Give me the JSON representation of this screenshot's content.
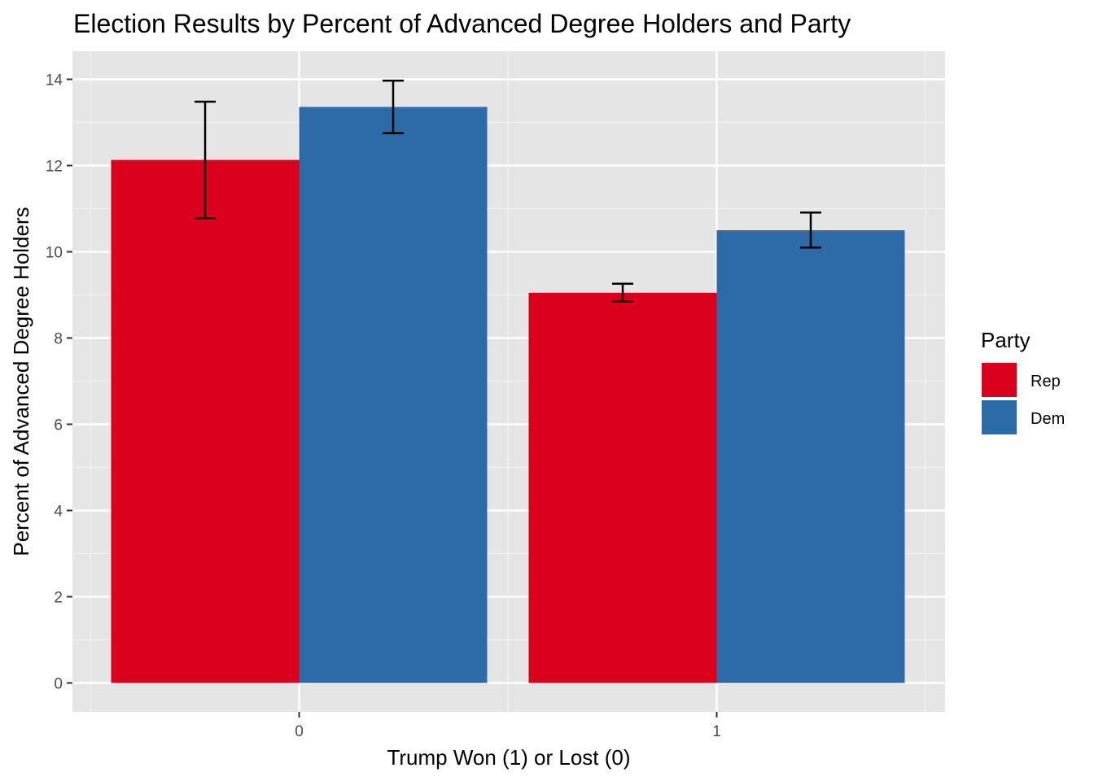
{
  "chart_data": {
    "type": "bar",
    "title": "Election Results by Percent of Advanced Degree Holders and Party",
    "xlabel": "Trump Won (1) or Lost (0)",
    "ylabel": "Percent of Advanced Degree Holders",
    "categories": [
      "0",
      "1"
    ],
    "y_ticks": [
      "0",
      "2",
      "4",
      "6",
      "8",
      "10",
      "12",
      "14"
    ],
    "ylim": [
      -0.55,
      14.6
    ],
    "grid": true,
    "legend": {
      "title": "Party",
      "placement": "right"
    },
    "series": [
      {
        "name": "Rep",
        "color": "#DB001B",
        "values": [
          12.13,
          9.05
        ],
        "error_low": [
          10.78,
          8.85
        ],
        "error_high": [
          13.48,
          9.26
        ]
      },
      {
        "name": "Dem",
        "color": "#2C6AA8",
        "values": [
          13.36,
          10.5
        ],
        "error_low": [
          12.75,
          10.1
        ],
        "error_high": [
          13.97,
          10.91
        ]
      }
    ]
  }
}
